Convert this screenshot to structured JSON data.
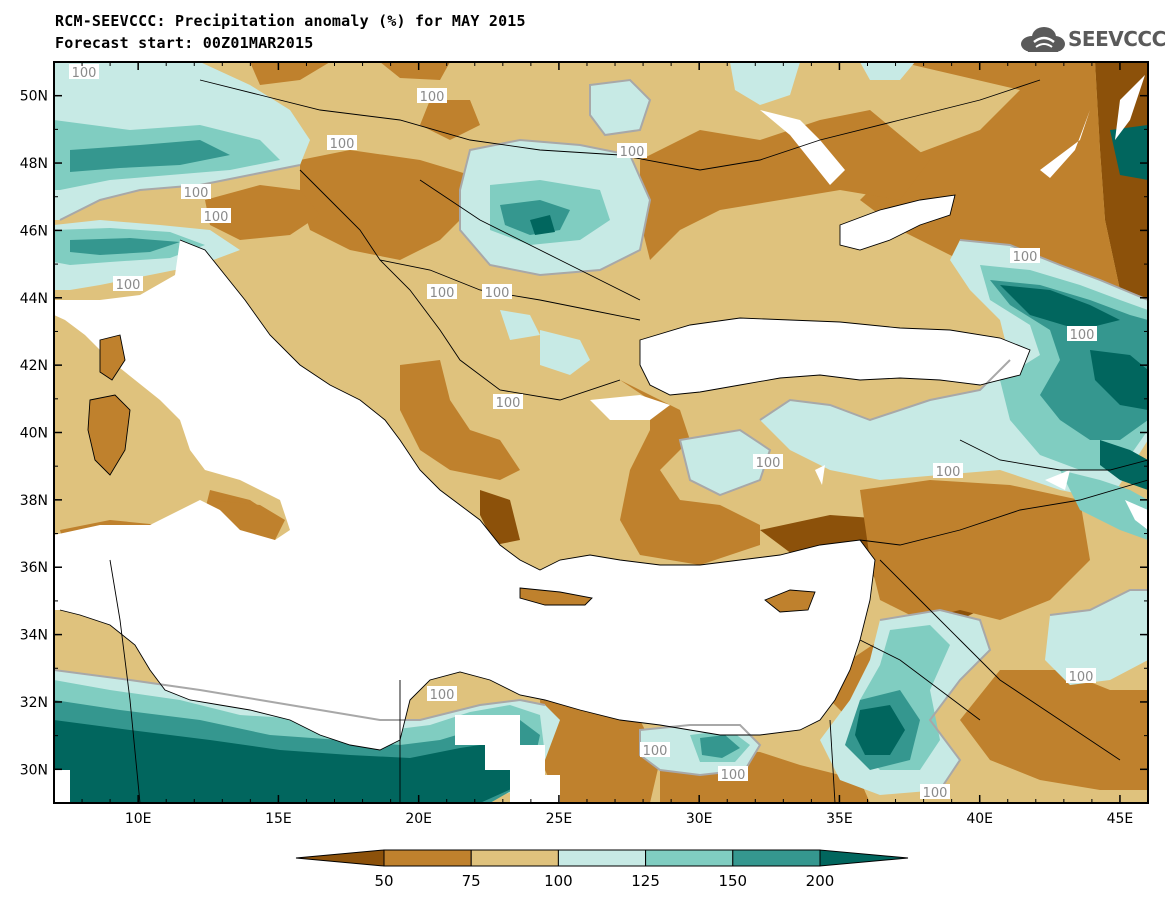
{
  "header": {
    "title_line1": "RCM-SEEVCCC: Precipitation anomaly (%) for MAY 2015",
    "title_line2": "Forecast start: 00Z01MAR2015"
  },
  "logo": {
    "text": "SEEVCCC",
    "icon": "cloud-logo-icon"
  },
  "map": {
    "lon_range": [
      7,
      46
    ],
    "lat_range": [
      29,
      51
    ],
    "x_ticks": [
      "10E",
      "15E",
      "20E",
      "25E",
      "30E",
      "35E",
      "40E",
      "45E"
    ],
    "y_ticks": [
      "30N",
      "32N",
      "34N",
      "36N",
      "38N",
      "40N",
      "42N",
      "44N",
      "46N",
      "48N",
      "50N"
    ],
    "contour_label": "100",
    "colors": {
      "lt50": "#8c510a",
      "50_75": "#bf812d",
      "75_100": "#dfc27d",
      "100_125": "#c7eae5",
      "125_150": "#80cdc1",
      "150_200": "#35978f",
      "gt200": "#01665e",
      "sea": "#ffffff"
    }
  },
  "colorbar": {
    "labels": [
      "50",
      "75",
      "100",
      "125",
      "150",
      "200"
    ],
    "colors": [
      "#8c510a",
      "#bf812d",
      "#dfc27d",
      "#c7eae5",
      "#80cdc1",
      "#35978f",
      "#01665e"
    ]
  }
}
